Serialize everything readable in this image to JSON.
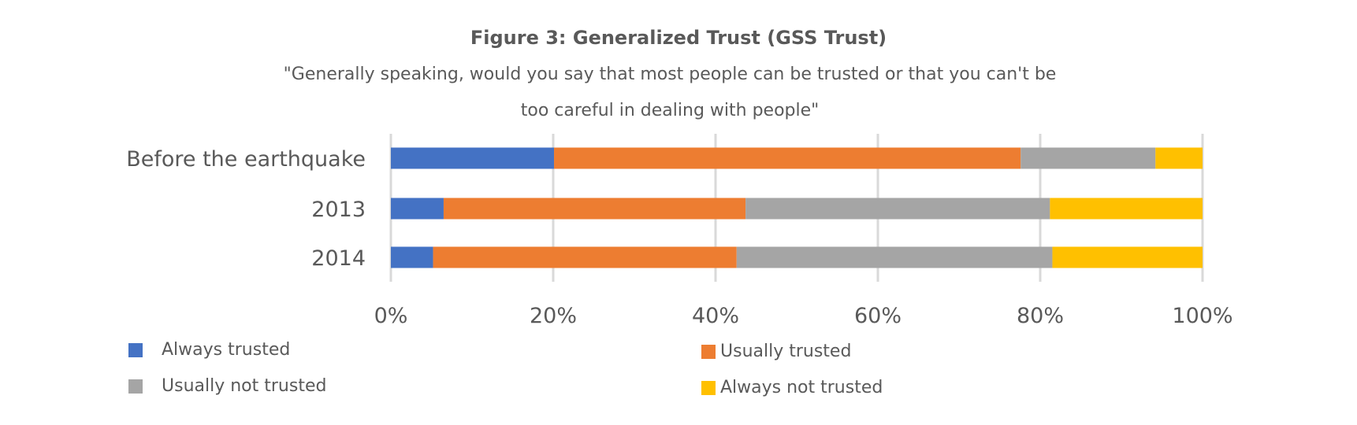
{
  "chart_data": {
    "type": "bar",
    "orientation": "horizontal",
    "stacked": "percent",
    "title": "Figure 3: Generalized Trust (GSS Trust)",
    "subtitle_lines": [
      "\"Generally speaking, would you say that most people can be trusted or that you can't be",
      "too careful in dealing with people\""
    ],
    "categories": [
      "Before the earthquake",
      "2013",
      "2014"
    ],
    "series": [
      {
        "name": "Always trusted",
        "color": "#4472C4",
        "values": [
          20.1,
          6.5,
          5.2
        ]
      },
      {
        "name": "Usually trusted",
        "color": "#ED7D31",
        "values": [
          57.5,
          37.2,
          37.4
        ]
      },
      {
        "name": "Usually not trusted",
        "color": "#A5A5A5",
        "values": [
          16.6,
          37.5,
          38.9
        ]
      },
      {
        "name": "Always not trusted",
        "color": "#FFC000",
        "values": [
          5.8,
          18.8,
          18.5
        ]
      }
    ],
    "xticks": [
      "0%",
      "20%",
      "40%",
      "60%",
      "80%",
      "100%"
    ],
    "xlim": [
      0,
      100
    ],
    "grid": true,
    "legend": "bottom"
  }
}
